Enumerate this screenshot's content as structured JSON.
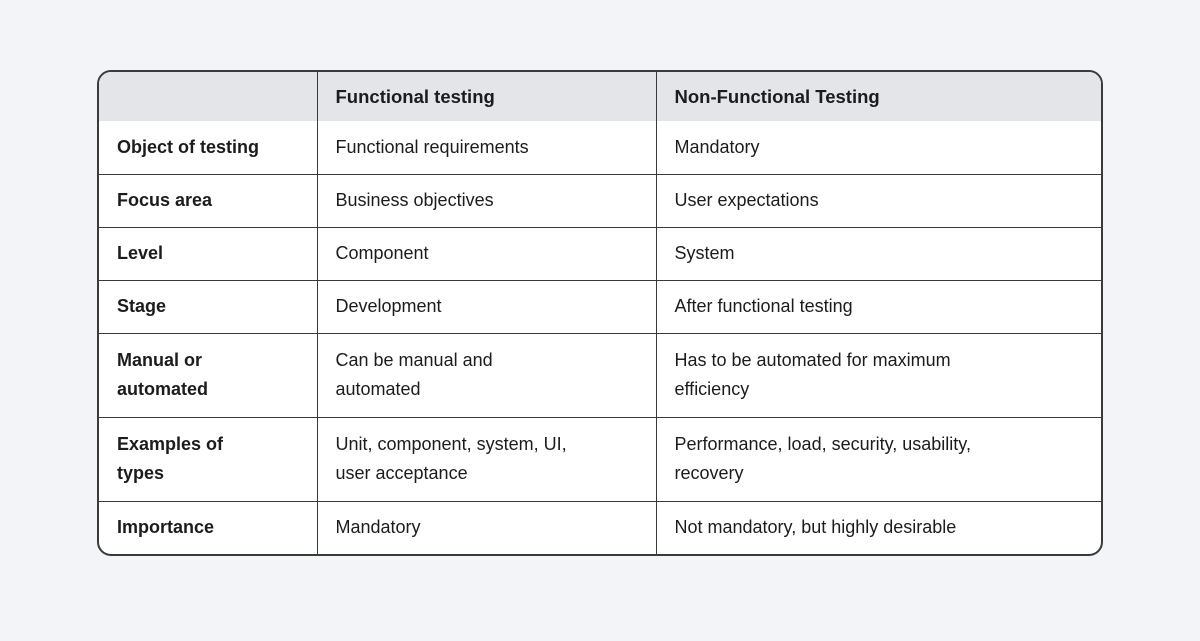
{
  "theme": {
    "page_background": "#f2f4f7",
    "header_background": "#e3e5e8",
    "border_color": "#3a3a3a",
    "text_color": "#1c1c1e"
  },
  "chart_data": {
    "type": "table",
    "title": "",
    "columns": [
      "",
      "Functional testing",
      "Non-Functional Testing"
    ],
    "rows": [
      [
        "Object of testing",
        "Functional requirements",
        "Mandatory"
      ],
      [
        "Focus area",
        "Business objectives",
        "User expectations"
      ],
      [
        "Level",
        "Component",
        "System"
      ],
      [
        "Stage",
        "Development",
        "After functional testing"
      ],
      [
        "Manual or automated",
        "Can be manual and automated",
        "Has to be automated for maximum efficiency"
      ],
      [
        "Examples of types",
        "Unit, component, system, UI, user acceptance",
        "Performance, load, security, usability, recovery"
      ],
      [
        "Importance",
        "Mandatory",
        "Not mandatory, but highly desirable"
      ]
    ]
  },
  "table": {
    "header": {
      "col_label": "",
      "col_functional": "Functional testing",
      "col_nonfunctional": "Non-Functional Testing"
    },
    "rows": [
      {
        "label": "Object of testing",
        "functional": "Functional requirements",
        "nonfunctional": "Mandatory"
      },
      {
        "label": "Focus area",
        "functional": "Business objectives",
        "nonfunctional": "User expectations"
      },
      {
        "label": "Level",
        "functional": "Component",
        "nonfunctional": "System"
      },
      {
        "label": "Stage",
        "functional": "Development",
        "nonfunctional": "After functional testing"
      },
      {
        "label": "Manual or\nautomated",
        "functional": "Can be manual and\nautomated",
        "nonfunctional": "Has to be automated for maximum\nefficiency"
      },
      {
        "label": "Examples of\ntypes",
        "functional": "Unit, component, system, UI,\nuser acceptance",
        "nonfunctional": "Performance, load, security, usability,\nrecovery"
      },
      {
        "label": "Importance",
        "functional": "Mandatory",
        "nonfunctional": "Not mandatory, but highly desirable"
      }
    ]
  }
}
